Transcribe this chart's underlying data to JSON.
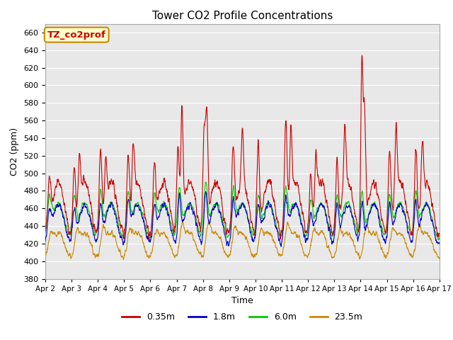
{
  "title": "Tower CO2 Profile Concentrations",
  "xlabel": "Time",
  "ylabel": "CO2 (ppm)",
  "ylim": [
    380,
    670
  ],
  "yticks": [
    380,
    400,
    420,
    440,
    460,
    480,
    500,
    520,
    540,
    560,
    580,
    600,
    620,
    640,
    660
  ],
  "xtick_labels": [
    "Apr 2",
    "Apr 3",
    "Apr 4",
    "Apr 5",
    "Apr 6",
    "Apr 7",
    "Apr 8",
    "Apr 9",
    "Apr 10",
    "Apr 11",
    "Apr 12",
    "Apr 13",
    "Apr 14",
    "Apr 15",
    "Apr 16",
    "Apr 17"
  ],
  "legend_labels": [
    "0.35m",
    "1.8m",
    "6.0m",
    "23.5m"
  ],
  "line_colors": [
    "#cc0000",
    "#0000cc",
    "#00cc00",
    "#cc8800"
  ],
  "annotation_text": "TZ_co2prof",
  "annotation_bg": "#ffffcc",
  "annotation_border": "#cc8800",
  "annotation_text_color": "#cc0000",
  "plot_bg_color": "#e8e8e8",
  "n_days": 15,
  "n_points_per_day": 144,
  "seed": 42
}
